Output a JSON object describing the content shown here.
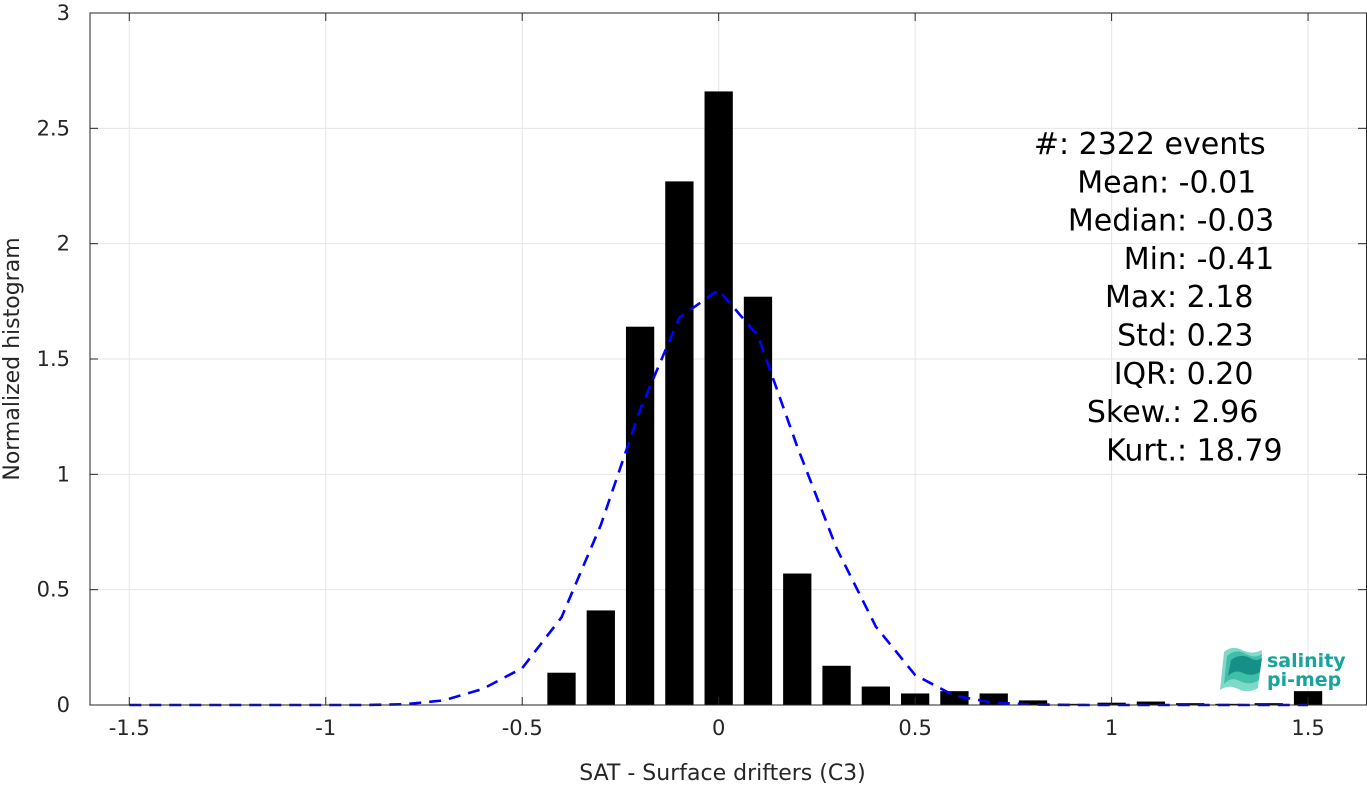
{
  "chart_data": {
    "type": "bar",
    "title": "",
    "xlabel": "SAT - Surface drifters (C3)",
    "ylabel": "Normalized histogram",
    "xlim": [
      -1.6,
      1.65
    ],
    "ylim": [
      0,
      3
    ],
    "xticks": [
      -1.5,
      -1,
      -0.5,
      0,
      0.5,
      1,
      1.5
    ],
    "xtick_labels": [
      "-1.5",
      "-1",
      "-0.5",
      "0",
      "0.5",
      "1",
      "1.5"
    ],
    "yticks": [
      0,
      0.5,
      1,
      1.5,
      2,
      2.5,
      3
    ],
    "ytick_labels": [
      "0",
      "0.5",
      "1",
      "1.5",
      "2",
      "2.5",
      "3"
    ],
    "grid": true,
    "bin_width": 0.1,
    "bars": {
      "x": [
        -0.4,
        -0.3,
        -0.2,
        -0.1,
        0.0,
        0.1,
        0.2,
        0.3,
        0.4,
        0.5,
        0.6,
        0.7,
        0.8,
        0.9,
        1.0,
        1.1,
        1.2,
        1.3,
        1.4,
        1.5
      ],
      "values": [
        0.14,
        0.41,
        1.64,
        2.27,
        2.66,
        1.77,
        0.57,
        0.17,
        0.08,
        0.05,
        0.06,
        0.05,
        0.02,
        0.005,
        0.01,
        0.015,
        0.008,
        0.005,
        0.008,
        0.06
      ],
      "color": "#000000"
    },
    "fit_curve": {
      "style": "dashed",
      "color": "#0000ff",
      "x": [
        -1.5,
        -1.4,
        -1.3,
        -1.2,
        -1.1,
        -1.0,
        -0.9,
        -0.8,
        -0.7,
        -0.6,
        -0.5,
        -0.4,
        -0.3,
        -0.2,
        -0.1,
        0.0,
        0.1,
        0.2,
        0.3,
        0.4,
        0.5,
        0.6,
        0.7,
        0.8,
        0.9,
        1.0,
        1.1,
        1.2,
        1.3,
        1.4,
        1.5
      ],
      "y": [
        0.0,
        0.0,
        0.0,
        0.0,
        0.0,
        0.0,
        0.0,
        0.003,
        0.02,
        0.07,
        0.16,
        0.38,
        0.78,
        1.28,
        1.68,
        1.8,
        1.6,
        1.12,
        0.68,
        0.34,
        0.13,
        0.04,
        0.01,
        0.002,
        0.0,
        0.0,
        0.0,
        0.0,
        0.0,
        0.0,
        0.0
      ]
    },
    "annotations": [
      {
        "label": "#  ",
        "value": ": 2322 events"
      },
      {
        "label": "Mean ",
        "value": ": -0.01"
      },
      {
        "label": "Median ",
        "value": ": -0.03"
      },
      {
        "label": "Min ",
        "value": ": -0.41"
      },
      {
        "label": "Max ",
        "value": ": 2.18"
      },
      {
        "label": "Std ",
        "value": ": 0.23"
      },
      {
        "label": "IQR ",
        "value": ": 0.20"
      },
      {
        "label": "Skew. ",
        "value": ": 2.96"
      },
      {
        "label": "Kurt. ",
        "value": ": 18.79"
      }
    ]
  },
  "logo": {
    "line1": "salinity",
    "line2": "pi-mep",
    "color": "#1aa39a"
  }
}
